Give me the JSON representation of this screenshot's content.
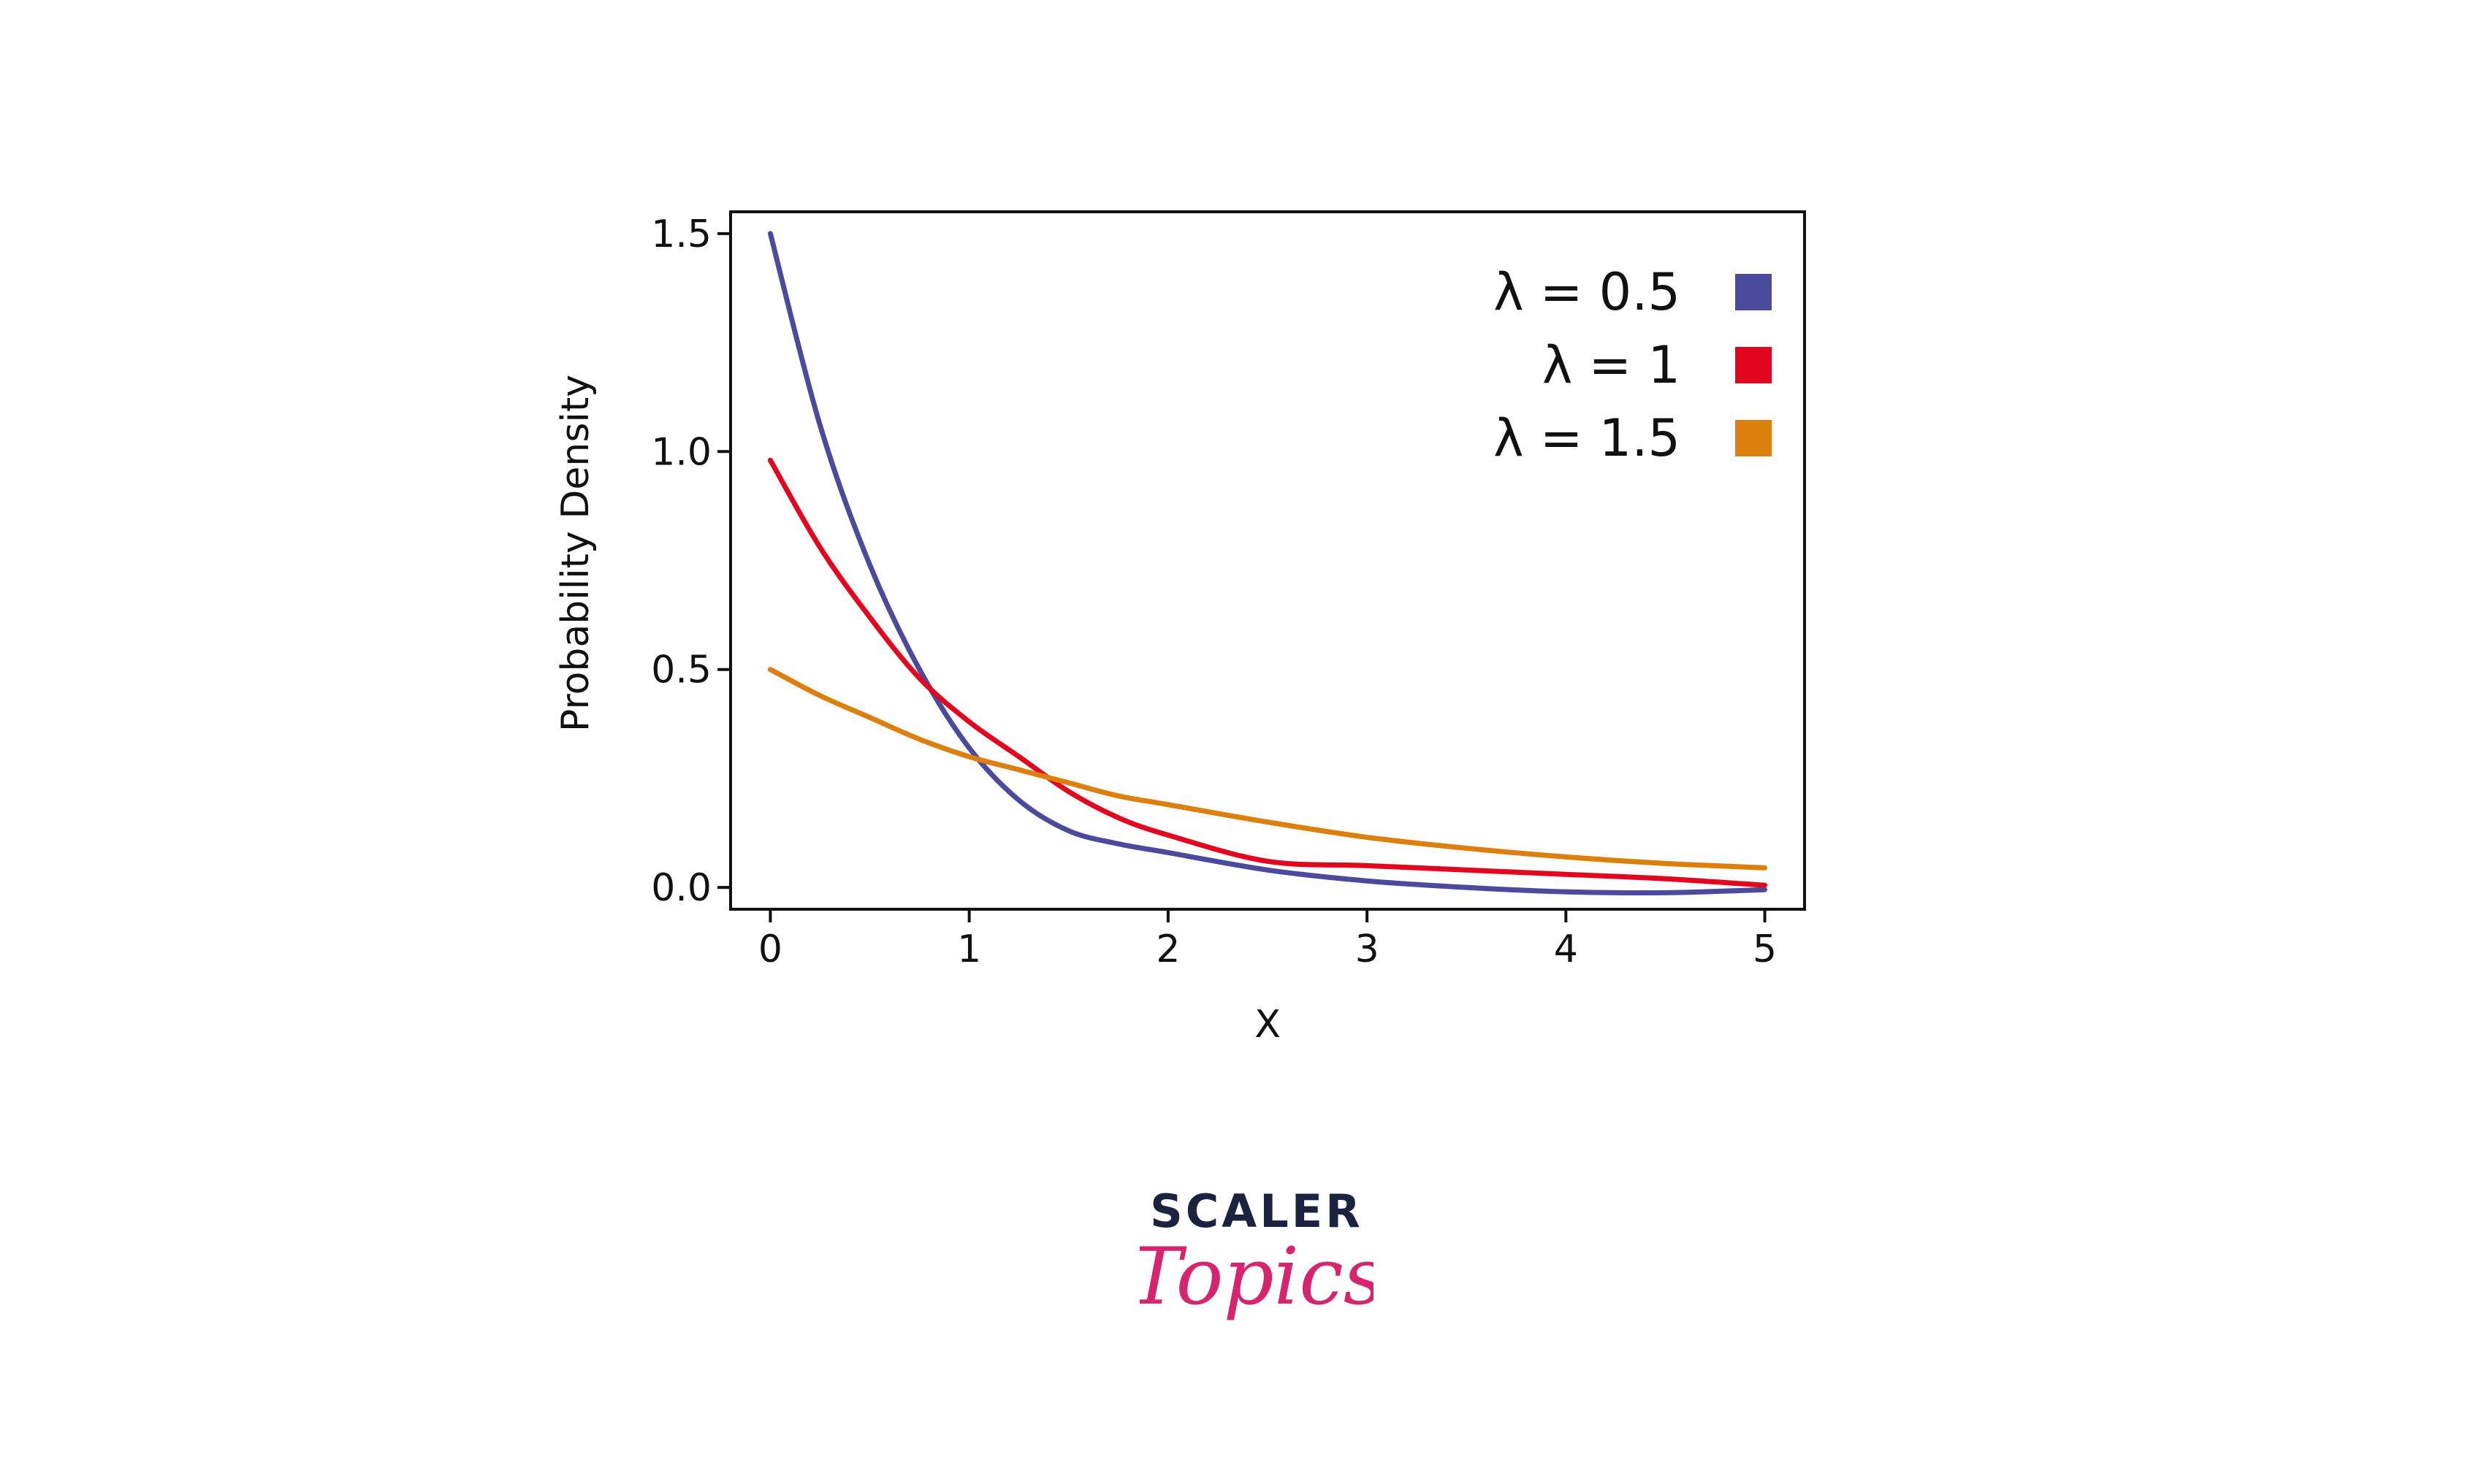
{
  "chart_data": {
    "type": "line",
    "title": "",
    "xlabel": "X",
    "ylabel": "Probability Density",
    "xlim": [
      -0.2,
      5.2
    ],
    "ylim": [
      -0.05,
      1.55
    ],
    "xticks": [
      0,
      1,
      2,
      3,
      4,
      5
    ],
    "xtick_labels": [
      "0",
      "1",
      "2",
      "3",
      "4",
      "5"
    ],
    "yticks": [
      0.0,
      0.5,
      1.0,
      1.5
    ],
    "ytick_labels": [
      "0.0",
      "0.5",
      "1.0",
      "1.5"
    ],
    "grid": false,
    "legend_position": "top-right",
    "series": [
      {
        "name": "λ = 0.5",
        "color": "#4b4a9c",
        "x": [
          0,
          0.25,
          0.5,
          0.75,
          1.0,
          1.25,
          1.5,
          1.75,
          2.0,
          2.5,
          3.0,
          3.5,
          4.0,
          4.5,
          5.0
        ],
        "y": [
          1.5,
          1.06,
          0.74,
          0.5,
          0.32,
          0.2,
          0.13,
          0.1,
          0.08,
          0.04,
          0.015,
          0.0,
          -0.01,
          -0.012,
          -0.005
        ]
      },
      {
        "name": "λ = 1",
        "color": "#e3061f",
        "x": [
          0,
          0.25,
          0.5,
          0.75,
          1.0,
          1.25,
          1.5,
          1.75,
          2.0,
          2.5,
          3.0,
          3.5,
          4.0,
          4.5,
          5.0
        ],
        "y": [
          0.98,
          0.78,
          0.62,
          0.48,
          0.38,
          0.3,
          0.22,
          0.16,
          0.12,
          0.06,
          0.05,
          0.04,
          0.03,
          0.02,
          0.005
        ]
      },
      {
        "name": "λ = 1.5",
        "color": "#dc7f0d",
        "x": [
          0,
          0.25,
          0.5,
          0.75,
          1.0,
          1.25,
          1.5,
          1.75,
          2.0,
          2.5,
          3.0,
          3.5,
          4.0,
          4.5,
          5.0
        ],
        "y": [
          0.5,
          0.44,
          0.39,
          0.34,
          0.3,
          0.27,
          0.24,
          0.21,
          0.19,
          0.15,
          0.115,
          0.09,
          0.07,
          0.055,
          0.045
        ]
      }
    ]
  },
  "logo": {
    "brand_top": "SCALER",
    "brand_bottom": "Topics"
  }
}
